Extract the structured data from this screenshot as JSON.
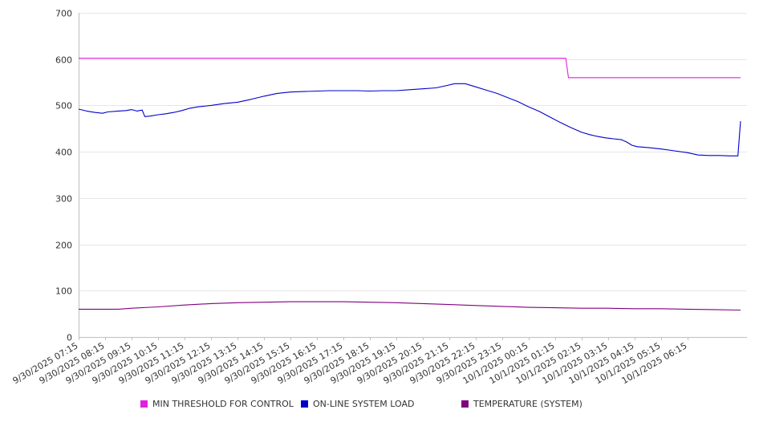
{
  "chart_data": {
    "type": "line",
    "ylim": [
      0,
      700
    ],
    "yticks": [
      0,
      100,
      200,
      300,
      400,
      500,
      600,
      700
    ],
    "grid": true,
    "legend_position": "bottom",
    "categories": [
      "9/30/2025 07:15",
      "9/30/2025 08:15",
      "9/30/2025 09:15",
      "9/30/2025 10:15",
      "9/30/2025 11:15",
      "9/30/2025 12:15",
      "9/30/2025 13:15",
      "9/30/2025 14:15",
      "9/30/2025 15:15",
      "9/30/2025 16:15",
      "9/30/2025 17:15",
      "9/30/2025 18:15",
      "9/30/2025 19:15",
      "9/30/2025 20:15",
      "9/30/2025 21:15",
      "9/30/2025 22:15",
      "9/30/2025 23:15",
      "10/1/2025 00:15",
      "10/1/2025 01:15",
      "10/1/2025 02:15",
      "10/1/2025 03:15",
      "10/1/2025 04:15",
      "10/1/2025 05:15",
      "10/1/2025 06:15"
    ],
    "series": [
      {
        "name": "MIN THRESHOLD FOR CONTROL",
        "color": "#e020e0",
        "points": [
          [
            0,
            602
          ],
          [
            18.4,
            602
          ],
          [
            18.5,
            560
          ],
          [
            25,
            560
          ]
        ]
      },
      {
        "name": "ON-LINE SYSTEM LOAD",
        "color": "#0000cc",
        "points": [
          [
            0,
            492
          ],
          [
            0.3,
            488
          ],
          [
            0.6,
            485
          ],
          [
            0.9,
            483
          ],
          [
            1.1,
            486
          ],
          [
            1.5,
            488
          ],
          [
            1.8,
            489
          ],
          [
            2.0,
            491
          ],
          [
            2.2,
            488
          ],
          [
            2.4,
            490
          ],
          [
            2.5,
            476
          ],
          [
            2.7,
            477
          ],
          [
            3.0,
            480
          ],
          [
            3.3,
            482
          ],
          [
            3.6,
            485
          ],
          [
            3.9,
            489
          ],
          [
            4.2,
            494
          ],
          [
            4.5,
            497
          ],
          [
            5.0,
            500
          ],
          [
            5.5,
            504
          ],
          [
            6.0,
            507
          ],
          [
            6.5,
            513
          ],
          [
            7.0,
            520
          ],
          [
            7.5,
            526
          ],
          [
            8.0,
            529
          ],
          [
            8.5,
            530
          ],
          [
            9.0,
            531
          ],
          [
            9.5,
            532
          ],
          [
            10.0,
            532
          ],
          [
            10.5,
            532
          ],
          [
            11.0,
            531
          ],
          [
            11.5,
            532
          ],
          [
            12.0,
            532
          ],
          [
            12.5,
            534
          ],
          [
            13.0,
            536
          ],
          [
            13.5,
            538
          ],
          [
            13.9,
            543
          ],
          [
            14.2,
            547
          ],
          [
            14.6,
            547
          ],
          [
            15.0,
            540
          ],
          [
            15.4,
            533
          ],
          [
            15.8,
            526
          ],
          [
            16.2,
            517
          ],
          [
            16.6,
            508
          ],
          [
            17.0,
            497
          ],
          [
            17.4,
            487
          ],
          [
            17.8,
            475
          ],
          [
            18.2,
            463
          ],
          [
            18.6,
            452
          ],
          [
            19.0,
            442
          ],
          [
            19.3,
            437
          ],
          [
            19.6,
            433
          ],
          [
            19.9,
            430
          ],
          [
            20.2,
            428
          ],
          [
            20.5,
            426
          ],
          [
            20.7,
            421
          ],
          [
            20.9,
            414
          ],
          [
            21.1,
            411
          ],
          [
            21.5,
            409
          ],
          [
            22.0,
            406
          ],
          [
            22.5,
            402
          ],
          [
            23.0,
            398
          ],
          [
            23.4,
            393
          ],
          [
            23.8,
            392
          ],
          [
            24.2,
            392
          ],
          [
            24.6,
            391
          ],
          [
            24.9,
            391
          ],
          [
            25.0,
            466
          ]
        ]
      },
      {
        "name": "TEMPERATURE (SYSTEM)",
        "color": "#800080",
        "points": [
          [
            0,
            60
          ],
          [
            1.5,
            60
          ],
          [
            2.0,
            62
          ],
          [
            3.0,
            65
          ],
          [
            4.0,
            69
          ],
          [
            5.0,
            72
          ],
          [
            6.0,
            74
          ],
          [
            7.0,
            75
          ],
          [
            8.0,
            76
          ],
          [
            9.0,
            76
          ],
          [
            10.0,
            76
          ],
          [
            11.0,
            75
          ],
          [
            12.0,
            74
          ],
          [
            13.0,
            72
          ],
          [
            14.0,
            70
          ],
          [
            15.0,
            68
          ],
          [
            16.0,
            66
          ],
          [
            17.0,
            64
          ],
          [
            18.0,
            63
          ],
          [
            19.0,
            62
          ],
          [
            20.0,
            62
          ],
          [
            21.0,
            61
          ],
          [
            22.0,
            61
          ],
          [
            23.0,
            60
          ],
          [
            24.0,
            59
          ],
          [
            25.0,
            58
          ]
        ]
      }
    ]
  }
}
